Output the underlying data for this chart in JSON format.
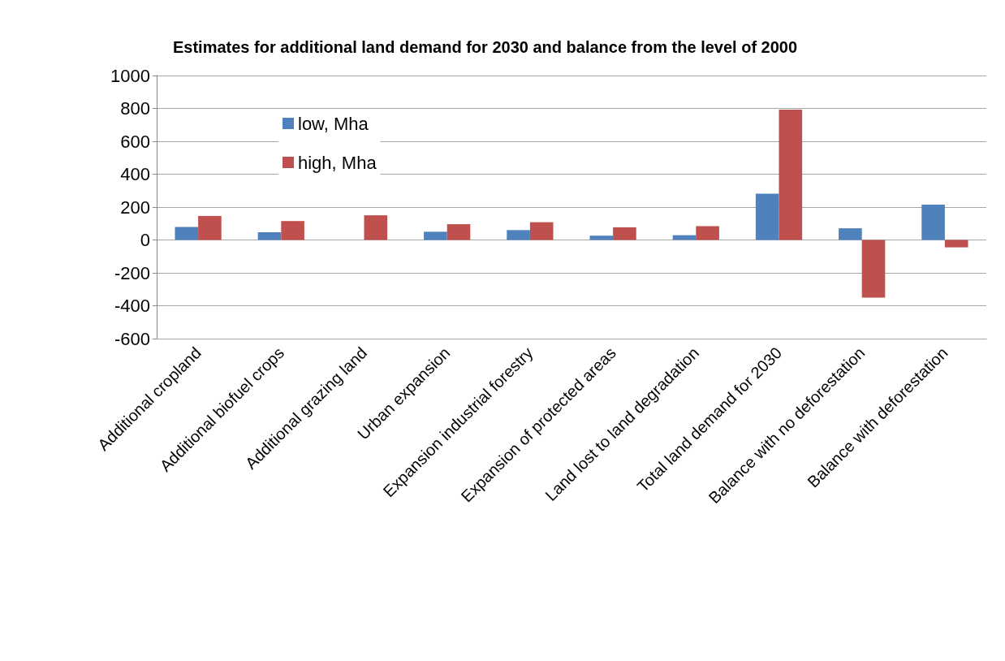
{
  "chart_data": {
    "type": "bar",
    "title": "Estimates for additional land demand for 2030 and balance from the level of 2000",
    "categories": [
      "Additional cropland",
      "Additional biofuel crops",
      "Additional grazing land",
      "Urban expansion",
      "Expansion industrial forestry",
      "Expansion of protected areas",
      "Land lost to land degradation",
      "Total land demand for 2030",
      "Balance with no deforestation",
      "Balance with deforestation"
    ],
    "series": [
      {
        "name": "low, Mha",
        "color": "#4f81bd",
        "values": [
          79,
          47,
          0,
          50,
          60,
          26,
          29,
          281,
          71,
          215
        ]
      },
      {
        "name": "high, Mha",
        "color": "#c0504d",
        "values": [
          146,
          115,
          150,
          96,
          108,
          77,
          84,
          792,
          -350,
          -45
        ]
      }
    ],
    "ylim": [
      -600,
      1000
    ],
    "yticks": [
      -600,
      -400,
      -200,
      0,
      200,
      400,
      600,
      800,
      1000
    ],
    "grid": "y",
    "legend": "top left"
  }
}
